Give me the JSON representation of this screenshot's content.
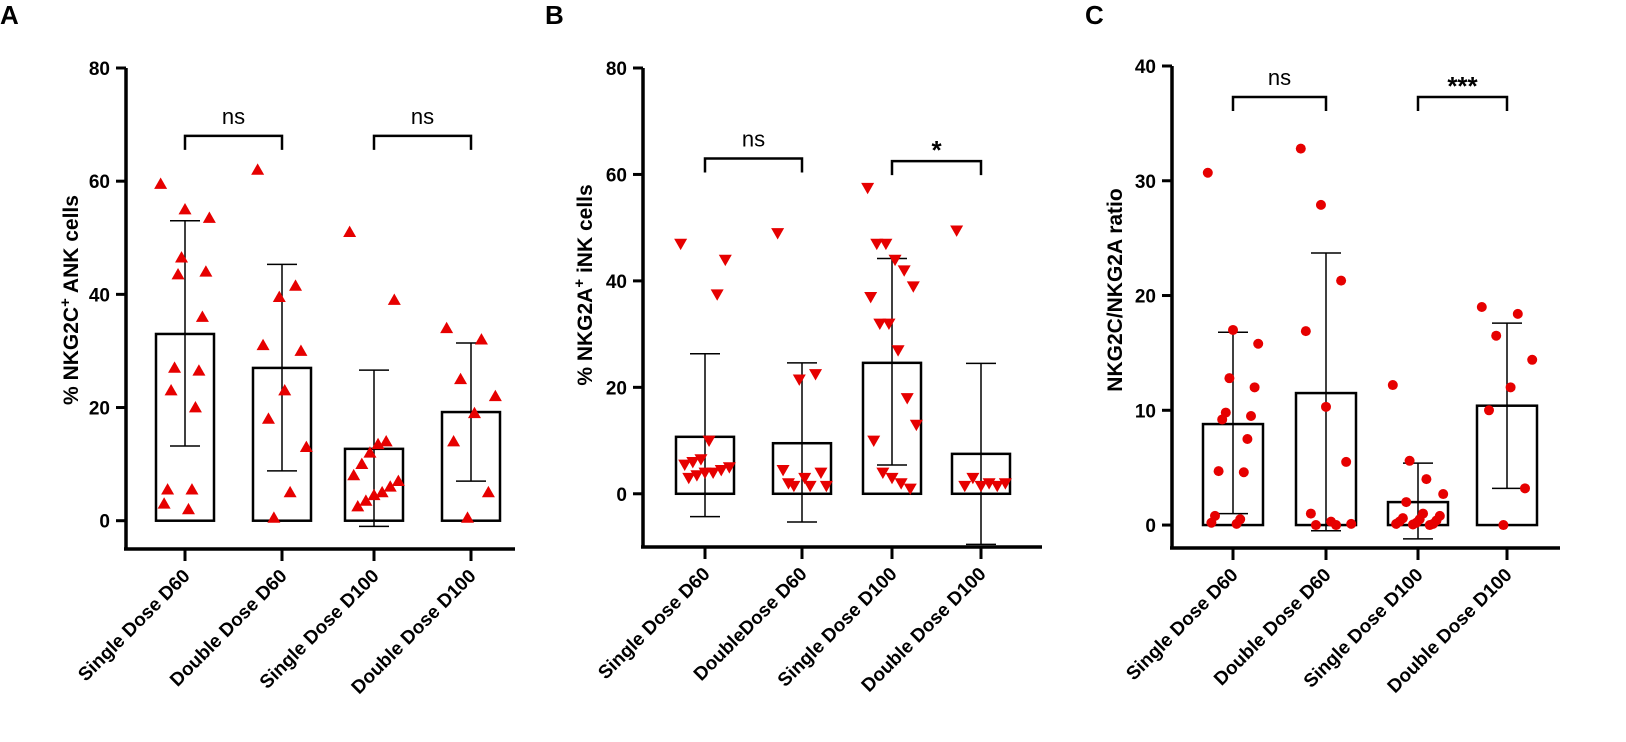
{
  "colors": {
    "points": "#e60000",
    "axis": "#000000",
    "bar_fill": "#ffffff"
  },
  "chart_data": [
    {
      "panel": "A",
      "type": "bar",
      "ylabel_pre": "% NKG2C",
      "ylabel_sup": "+",
      "ylabel_post": " ANK cells",
      "ylim": [
        -5,
        80
      ],
      "yticks": [
        0,
        20,
        40,
        60,
        80
      ],
      "marker": "triangle-up",
      "categories": [
        "Single Dose D60",
        "Double Dose D60",
        "Single Dose D100",
        "Double Dose D100"
      ],
      "means": [
        33,
        27,
        12.7,
        19.2
      ],
      "err_low": [
        13.2,
        8.8,
        -1,
        7
      ],
      "err_high": [
        53,
        45.3,
        26.6,
        31.4
      ],
      "points": [
        [
          59.5,
          55,
          53.5,
          46.5,
          44,
          43.5,
          36,
          27,
          26.5,
          23,
          20,
          5.5,
          5.5,
          3,
          2
        ],
        [
          62,
          41.5,
          39.5,
          31,
          30,
          23,
          18,
          13,
          5,
          0.5
        ],
        [
          51,
          39,
          14,
          13.5,
          12,
          10,
          8,
          7,
          6,
          5,
          4.5,
          3.5,
          2.5
        ],
        [
          34,
          32,
          25,
          22,
          19,
          14,
          5,
          0.5
        ]
      ],
      "comparisons": [
        {
          "from": 0,
          "to": 1,
          "label": "ns",
          "y": 68
        },
        {
          "from": 2,
          "to": 3,
          "label": "ns",
          "y": 68
        }
      ]
    },
    {
      "panel": "B",
      "type": "bar",
      "ylabel_pre": "% NKG2A",
      "ylabel_sup": "+",
      "ylabel_post": " iNK cells",
      "ylim": [
        -10,
        80
      ],
      "yticks": [
        0,
        20,
        40,
        60,
        80
      ],
      "marker": "triangle-down",
      "categories": [
        "Single Dose D60",
        "DoubleDose D60",
        "Single Dose D100",
        "Double Dose D100"
      ],
      "means": [
        10.7,
        9.5,
        24.6,
        7.5
      ],
      "err_low": [
        -4.3,
        -5.3,
        5.4,
        -9.5
      ],
      "err_high": [
        26.3,
        24.6,
        44.2,
        24.5
      ],
      "points": [
        [
          47,
          44,
          37.5,
          10,
          6.5,
          6,
          5.5,
          5,
          4.5,
          4,
          4,
          3.5,
          3
        ],
        [
          49,
          22.5,
          21.5,
          4.5,
          4,
          3,
          2,
          1.5,
          1.5,
          1.5
        ],
        [
          57.5,
          47,
          47,
          44,
          42,
          39,
          37,
          32,
          32,
          27,
          18,
          13,
          10,
          4,
          3,
          2,
          1
        ],
        [
          49.5,
          3,
          2,
          2,
          1.5,
          1.5,
          1.5
        ]
      ],
      "comparisons": [
        {
          "from": 0,
          "to": 1,
          "label": "ns",
          "y": 63
        },
        {
          "from": 2,
          "to": 3,
          "label": "*",
          "y": 62.5
        }
      ]
    },
    {
      "panel": "C",
      "type": "bar",
      "ylabel_pre": "NKG2C/NKG2A ratio",
      "ylabel_sup": "",
      "ylabel_post": "",
      "ylim": [
        -2,
        40
      ],
      "yticks": [
        0,
        10,
        20,
        30,
        40
      ],
      "marker": "circle",
      "categories": [
        "Single Dose D60",
        "Double Dose D60",
        "Single Dose D100",
        "Double Dose D100"
      ],
      "means": [
        8.8,
        11.5,
        2,
        10.4
      ],
      "err_low": [
        1,
        -0.5,
        -1.2,
        3.2
      ],
      "err_high": [
        16.8,
        23.7,
        5.4,
        17.6
      ],
      "points": [
        [
          30.7,
          17,
          15.8,
          12.8,
          12,
          9.8,
          9.5,
          9.2,
          7.5,
          4.7,
          4.6,
          0.8,
          0.5,
          0.2,
          0.1
        ],
        [
          32.8,
          27.9,
          21.3,
          16.9,
          10.3,
          5.5,
          1,
          0.3,
          0.1,
          0,
          0
        ],
        [
          12.2,
          5.6,
          4,
          2.7,
          2,
          1,
          0.8,
          0.6,
          0.5,
          0.4,
          0.3,
          0.2,
          0.1,
          0.1,
          0.05,
          0
        ],
        [
          19,
          18.4,
          16.5,
          14.4,
          12,
          10,
          3.2,
          0
        ]
      ],
      "comparisons": [
        {
          "from": 0,
          "to": 1,
          "label": "ns",
          "y": 37.3
        },
        {
          "from": 2,
          "to": 3,
          "label": "***",
          "y": 37.3
        }
      ]
    }
  ]
}
